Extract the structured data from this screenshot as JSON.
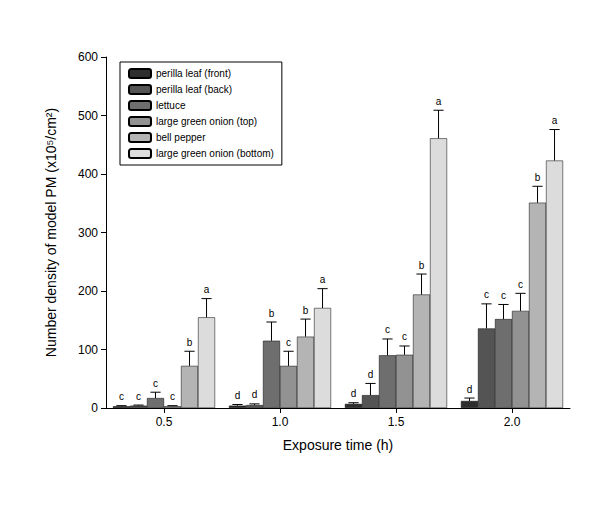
{
  "chart_data": {
    "type": "bar",
    "x_label": "Exposure time (h)",
    "y_label": "Number density of model PM (x10⁵/cm²)",
    "categories": [
      "0.5",
      "1.0",
      "1.5",
      "2.0"
    ],
    "ylim": [
      0,
      600
    ],
    "yticks": [
      0,
      100,
      200,
      300,
      400,
      500,
      600
    ],
    "grid": false,
    "legend": "top-left",
    "series": [
      {
        "name": "perilla leaf (front)",
        "color": "#2e2e2e",
        "values": [
          3,
          4,
          7,
          12
        ],
        "error": [
          1,
          2,
          2,
          5
        ],
        "letters": [
          "c",
          "d",
          "d",
          "d"
        ]
      },
      {
        "name": "perilla leaf (back)",
        "color": "#545454",
        "values": [
          4,
          5,
          22,
          136
        ],
        "error": [
          1,
          2,
          20,
          42
        ],
        "letters": [
          "c",
          "d",
          "d",
          "c"
        ]
      },
      {
        "name": "lettuce",
        "color": "#6e6e6e",
        "values": [
          17,
          115,
          90,
          152
        ],
        "error": [
          10,
          32,
          28,
          25
        ],
        "letters": [
          "c",
          "b",
          "c",
          "c"
        ]
      },
      {
        "name": "large green onion (top)",
        "color": "#929292",
        "values": [
          3,
          72,
          91,
          166
        ],
        "error": [
          1,
          25,
          15,
          30
        ],
        "letters": [
          "c",
          "c",
          "c",
          "c"
        ]
      },
      {
        "name": "bell pepper",
        "color": "#b4b4b4",
        "values": [
          72,
          122,
          194,
          351
        ],
        "error": [
          25,
          30,
          35,
          28
        ],
        "letters": [
          "b",
          "b",
          "b",
          "b"
        ]
      },
      {
        "name": "large green onion (bottom)",
        "color": "#dcdcdc",
        "values": [
          155,
          171,
          461,
          423
        ],
        "error": [
          32,
          33,
          48,
          53
        ],
        "letters": [
          "a",
          "a",
          "a",
          "a"
        ]
      }
    ]
  }
}
